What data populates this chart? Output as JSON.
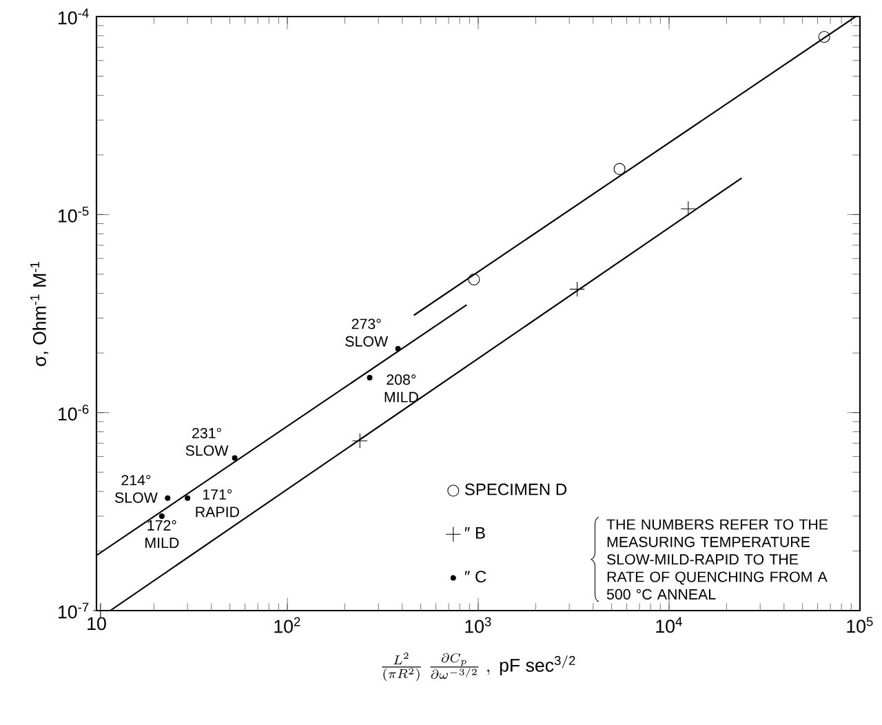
{
  "chart_data": {
    "type": "scatter",
    "xlabel": "\\frac{L^2}{(\\pi R^2)}\\;\\frac{\\partial C_p}{\\partial \\omega^{-3/2}}\\;,\\ \\mathrm{pF\\ sec^{3/2}}",
    "ylabel": "σ, Ohm$^{-1}$ M$^{-1}$",
    "log": "xy",
    "grid": false,
    "legend": "bottom",
    "xlim": [
      10,
      100000
    ],
    "ylim": [
      1e-07,
      0.0001
    ],
    "xticks": [
      {
        "value": 10,
        "label": "10"
      },
      {
        "value": 100,
        "label": "10$^{2}$"
      },
      {
        "value": 1000,
        "label": "10$^{3}$"
      },
      {
        "value": 10000,
        "label": "10$^{4}$"
      },
      {
        "value": 100000,
        "label": "10$^{5}$"
      }
    ],
    "yticks": [
      {
        "value": 1e-07,
        "label": "10$^{-7}$"
      },
      {
        "value": 1e-06,
        "label": "10$^{-6}$"
      },
      {
        "value": 1e-05,
        "label": "10$^{-5}$"
      },
      {
        "value": 0.0001,
        "label": "10$^{-4}$"
      }
    ],
    "series": [
      {
        "name": "SPECIMEN D",
        "marker": "circle",
        "color": "#000000",
        "x": [
          950,
          5500,
          65000
        ],
        "values": [
          4.7e-06,
          1.7e-05,
          7.9e-05
        ]
      },
      {
        "name": "″ B",
        "marker": "cross",
        "color": "#000000",
        "x": [
          10.5,
          240,
          3300,
          12600
        ],
        "values": [
          1e-07,
          7.2e-07,
          4.2e-06,
          1.07e-05
        ]
      },
      {
        "name": "″ C",
        "marker": "circle",
        "color": "#000000",
        "x": [
          380,
          270,
          53,
          30,
          23.6,
          22
        ],
        "values": [
          2.1e-06,
          1.5e-06,
          5.9e-07,
          3.7e-07,
          3.7e-07,
          3e-07
        ]
      },
      {
        "type": "line",
        "color": "#000000",
        "line_style": "solid",
        "x": [
          10,
          870
        ],
        "values": [
          1.9e-07,
          3.5e-06
        ]
      },
      {
        "type": "line",
        "color": "#000000",
        "line_style": "solid",
        "x": [
          460,
          95000
        ],
        "values": [
          3.1e-06,
          0.0001
        ]
      },
      {
        "type": "line",
        "color": "#000000",
        "line_style": "solid",
        "x": [
          11.8,
          24000
        ],
        "values": [
          1e-07,
          1.53e-05
        ]
      }
    ],
    "annotations": [
      {
        "text": "273° SLOW",
        "x": 380,
        "y": 2.1e-06
      },
      {
        "text": "208° MILD",
        "x": 270,
        "y": 1.5e-06
      },
      {
        "text": "231° SLOW",
        "x": 53,
        "y": 5.9e-07
      },
      {
        "text": "214° SLOW",
        "x": 23.6,
        "y": 3.7e-07
      },
      {
        "text": "171° RAPID",
        "x": 30,
        "y": 3.7e-07
      },
      {
        "text": "172° MILD",
        "x": 22,
        "y": 3e-07
      },
      "THE NUMBERS REFER TO THE MEASURING TEMPERATURE SLOW-MILD-RAPID TO THE RATE OF QUENCHING FROM A 500 °C ANNEAL"
    ]
  }
}
